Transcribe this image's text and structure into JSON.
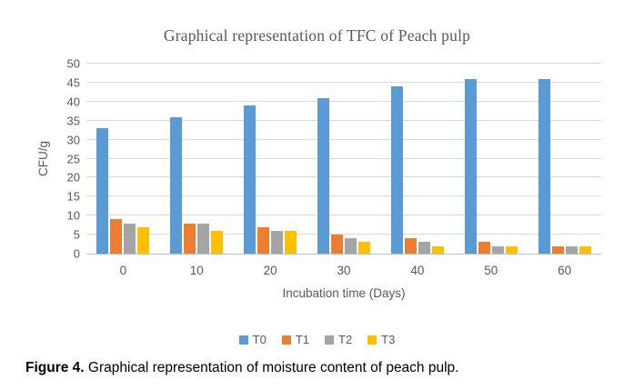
{
  "chart_data": {
    "type": "bar",
    "title": "Graphical representation of TFC of Peach pulp",
    "xlabel": "Incubation time (Days)",
    "ylabel": "CFU/g",
    "categories": [
      "0",
      "10",
      "20",
      "30",
      "40",
      "50",
      "60"
    ],
    "series": [
      {
        "name": "T0",
        "color": "#5B9BD5",
        "values": [
          33,
          36,
          39,
          41,
          44,
          46,
          46
        ]
      },
      {
        "name": "T1",
        "color": "#ED7D31",
        "values": [
          9,
          8,
          7,
          5,
          4,
          3,
          2
        ]
      },
      {
        "name": "T2",
        "color": "#A5A5A5",
        "values": [
          8,
          8,
          6,
          4,
          3,
          2,
          2
        ]
      },
      {
        "name": "T3",
        "color": "#FFC000",
        "values": [
          7,
          6,
          6,
          3,
          2,
          2,
          2
        ]
      }
    ],
    "ylim": [
      0,
      50
    ],
    "ytick_step": 5,
    "grid": true,
    "legend_position": "bottom"
  },
  "caption": {
    "label": "Figure 4.",
    "text": "Graphical representation of moisture content of peach pulp."
  },
  "colors": {
    "gridline": "#d9d9d9",
    "axis_line": "#bfbfbf",
    "axis_text": "#595959",
    "title_text": "#595959"
  }
}
